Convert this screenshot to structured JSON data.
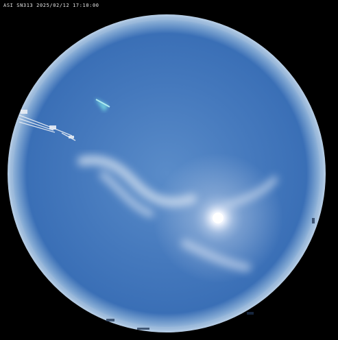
{
  "camera": {
    "caption": "ASI SN313 2025/02/12 17:10:00"
  },
  "colors": {
    "background": "#000000",
    "sky_center": "#4f82c4",
    "sky_edge": "#2e63b0",
    "horizon_ring": "#a9c3de",
    "sun": "#ffffff"
  }
}
